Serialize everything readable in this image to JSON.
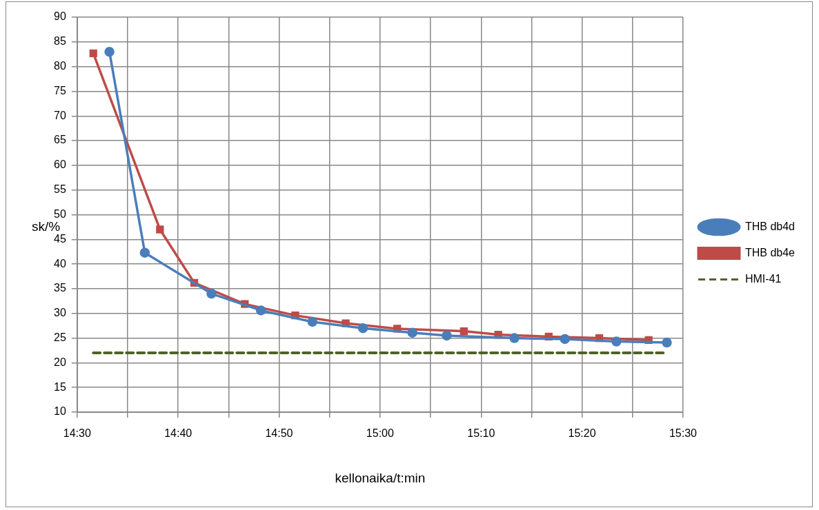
{
  "chart_data": {
    "type": "line",
    "xlabel": "kellonaika/t:min",
    "ylabel": "sk/%",
    "series": [
      {
        "name": "THB db4d",
        "color": "#4a7ebb",
        "marker": "circle",
        "line_style": "solid",
        "x": [
          14.5533,
          14.6117,
          14.7217,
          14.8033,
          14.8883,
          14.9717,
          15.0533,
          15.11,
          15.2217,
          15.305,
          15.39,
          15.4733
        ],
        "values": [
          83.0,
          42.3,
          34.0,
          30.6,
          28.3,
          27.0,
          26.1,
          25.5,
          25.0,
          24.8,
          24.3,
          24.1
        ]
      },
      {
        "name": "THB db4e",
        "color": "#be4b48",
        "marker": "square",
        "line_style": "solid",
        "x": [
          14.5267,
          14.6367,
          14.6933,
          14.7767,
          14.86,
          14.9433,
          15.0283,
          15.1383,
          15.195,
          15.2783,
          15.3617,
          15.4433
        ],
        "values": [
          82.7,
          47.0,
          36.2,
          31.9,
          29.6,
          28.0,
          26.9,
          26.4,
          25.7,
          25.3,
          25.0,
          24.6
        ]
      },
      {
        "name": "HMI-41",
        "color": "#4f6228",
        "marker": "none",
        "line_style": "dashed",
        "x": [
          14.5267,
          15.4733
        ],
        "values": [
          22,
          22
        ]
      }
    ],
    "xlim": [
      14.5,
      15.5
    ],
    "xticks": [
      {
        "value": 14.5,
        "label": "14:30"
      },
      {
        "value": 14.5833,
        "label": null
      },
      {
        "value": 14.6667,
        "label": "14:40"
      },
      {
        "value": 14.75,
        "label": null
      },
      {
        "value": 14.8333,
        "label": "14:50"
      },
      {
        "value": 14.9167,
        "label": null
      },
      {
        "value": 15.0,
        "label": "15:00"
      },
      {
        "value": 15.0833,
        "label": null
      },
      {
        "value": 15.1667,
        "label": "15:10"
      },
      {
        "value": 15.25,
        "label": null
      },
      {
        "value": 15.3333,
        "label": "15:20"
      },
      {
        "value": 15.4167,
        "label": null
      },
      {
        "value": 15.5,
        "label": "15:30"
      }
    ],
    "ylim": [
      10,
      90
    ],
    "yticks": [
      10,
      15,
      20,
      25,
      30,
      35,
      40,
      45,
      50,
      55,
      60,
      65,
      70,
      75,
      80,
      85,
      90
    ],
    "grid": true,
    "legend": "right"
  }
}
